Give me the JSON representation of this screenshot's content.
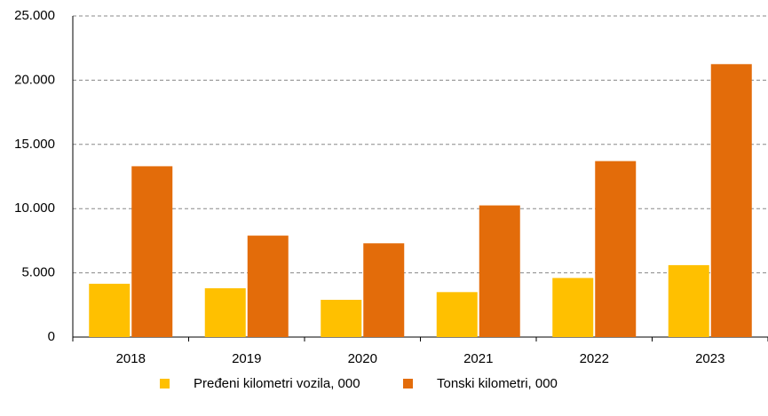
{
  "chart_data": {
    "type": "bar",
    "categories": [
      "2018",
      "2019",
      "2020",
      "2021",
      "2022",
      "2023"
    ],
    "series": [
      {
        "name": "Pređeni kilometri vozila, 000",
        "color": "#ffc000",
        "values": [
          4150,
          3800,
          2900,
          3500,
          4600,
          5600
        ]
      },
      {
        "name": "Tonski kilometri, 000",
        "color": "#e36c0a",
        "values": [
          13300,
          7900,
          7300,
          10250,
          13700,
          21250
        ]
      }
    ],
    "ylim": [
      0,
      25000
    ],
    "yticks": [
      0,
      {
        "value": 5000,
        "label": "5.000"
      },
      {
        "value": 10000,
        "label": "10.000"
      },
      {
        "value": 15000,
        "label": "15.000"
      },
      {
        "value": 20000,
        "label": "20.000"
      },
      {
        "value": 25000,
        "label": "25.000"
      }
    ],
    "grid": true,
    "legend": "bottom"
  }
}
